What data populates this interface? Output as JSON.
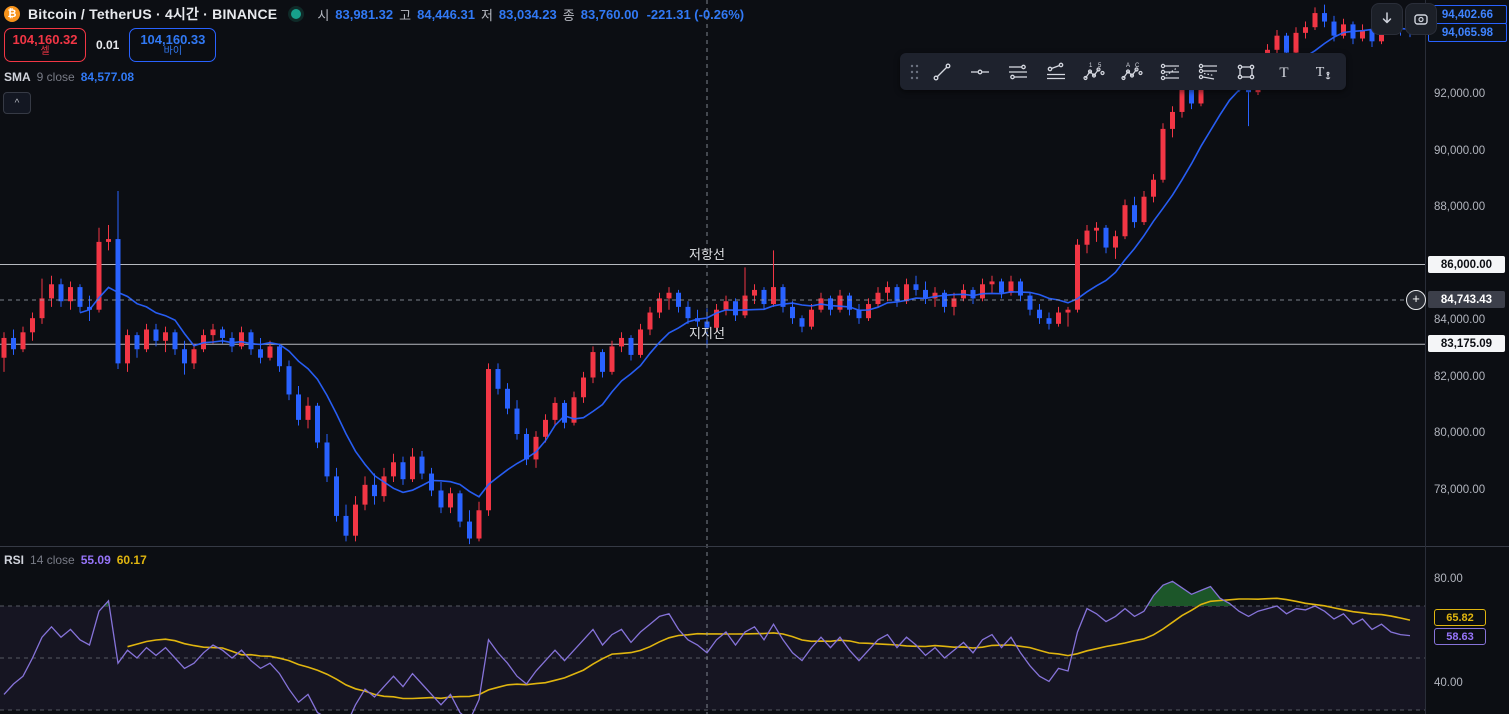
{
  "header": {
    "title": "Bitcoin / TetherUS · 4시간 · BINANCE",
    "logo_glyph": "₿",
    "ohlc": {
      "o_label": "시",
      "o": "83,981.32",
      "h_label": "고",
      "h": "84,446.31",
      "l_label": "저",
      "l": "83,034.23",
      "c_label": "종",
      "c": "83,760.00",
      "change": "-221.31 (-0.26%)"
    }
  },
  "trade_panel": {
    "sell_price": "104,160.32",
    "sell_label": "셀",
    "quantity": "0.01",
    "buy_price": "104,160.33",
    "buy_label": "바이"
  },
  "indicators": {
    "sma": {
      "name": "SMA",
      "params": "9 close",
      "value": "84,577.08"
    },
    "rsi": {
      "name": "RSI",
      "params": "14 close",
      "value_rsi": "55.09",
      "value_ma": "60.17"
    }
  },
  "toolbar": {
    "tools": [
      "drag-handle",
      "trend-line",
      "horizontal-line",
      "parallel-lines",
      "disjoint-channel",
      "elliott-impulse-wave",
      "elliott-correction-wave",
      "pitchfork",
      "schiff-pitchfork",
      "rectangle",
      "text",
      "anchored-text"
    ]
  },
  "top_right_buttons": [
    "download",
    "camera"
  ],
  "collapse_glyph": "^",
  "price_axis": {
    "ticks": [
      {
        "label": "92,000.00",
        "price": 92000
      },
      {
        "label": "90,000.00",
        "price": 90000
      },
      {
        "label": "88,000.00",
        "price": 88000
      },
      {
        "label": "84,000.00",
        "price": 84000
      },
      {
        "label": "82,000.00",
        "price": 82000
      },
      {
        "label": "80,000.00",
        "price": 80000
      },
      {
        "label": "78,000.00",
        "price": 78000
      }
    ],
    "last_price_label": "94,402.66",
    "sma_value_label": "94,065.98",
    "crosshair_label": "84,743.43",
    "resistance_label": "86,000.00",
    "support_label": "83,175.09"
  },
  "rsi_axis": {
    "ticks": [
      {
        "label": "80.00",
        "value": 80
      },
      {
        "label": "40.00",
        "value": 40
      }
    ],
    "ma_label": "65.82",
    "rsi_label": "58.63"
  },
  "annotations": {
    "resistance_text": "저항선",
    "support_text": "지지선"
  },
  "colors": {
    "up": "#f23645",
    "down": "#2962ff",
    "sma_line": "#2962ff",
    "rsi_line": "#8673d9",
    "rsi_ma_line": "#e0b50f",
    "overbought_fill": "#1e5b2a",
    "band_fill": "rgba(134,115,217,0.08)",
    "level_line": "#c9ccd2",
    "crosshair": "#9aa0aa"
  },
  "chart_data": {
    "type": "candlestick",
    "timeframe_label": "4시간",
    "levels": {
      "resistance": 86000,
      "support": 83175.09
    },
    "crosshair": {
      "index": 74,
      "price": 84743.43
    },
    "sma": {
      "period": 9
    },
    "candles": [
      [
        82700,
        83600,
        82200,
        83400
      ],
      [
        83400,
        83700,
        82800,
        83000
      ],
      [
        83000,
        83800,
        82900,
        83600
      ],
      [
        83600,
        84300,
        83300,
        84100
      ],
      [
        84100,
        85500,
        83900,
        84800
      ],
      [
        84800,
        85600,
        84500,
        85300
      ],
      [
        85300,
        85500,
        84500,
        84700
      ],
      [
        84700,
        85400,
        84400,
        85200
      ],
      [
        85200,
        85300,
        84300,
        84500
      ],
      [
        84500,
        84900,
        84000,
        84400
      ],
      [
        84400,
        87300,
        84300,
        86800
      ],
      [
        86800,
        87400,
        86500,
        86900
      ],
      [
        86900,
        88600,
        82300,
        82500
      ],
      [
        82500,
        83700,
        82200,
        83500
      ],
      [
        83500,
        83600,
        82700,
        83000
      ],
      [
        83000,
        83900,
        82900,
        83700
      ],
      [
        83700,
        83900,
        83100,
        83300
      ],
      [
        83300,
        83800,
        82900,
        83600
      ],
      [
        83600,
        83700,
        82800,
        83000
      ],
      [
        83000,
        83300,
        82100,
        82500
      ],
      [
        82500,
        83200,
        82300,
        83000
      ],
      [
        83000,
        83700,
        82900,
        83500
      ],
      [
        83500,
        83900,
        83200,
        83700
      ],
      [
        83700,
        83800,
        83200,
        83400
      ],
      [
        83400,
        83600,
        82900,
        83100
      ],
      [
        83100,
        83800,
        83000,
        83600
      ],
      [
        83600,
        83700,
        82800,
        83000
      ],
      [
        83000,
        83400,
        82500,
        82700
      ],
      [
        82700,
        83300,
        82600,
        83100
      ],
      [
        83100,
        83200,
        82200,
        82400
      ],
      [
        82400,
        82600,
        81200,
        81400
      ],
      [
        81400,
        81700,
        80300,
        80500
      ],
      [
        80500,
        81300,
        80200,
        81000
      ],
      [
        81000,
        81100,
        79500,
        79700
      ],
      [
        79700,
        80000,
        78300,
        78500
      ],
      [
        78500,
        78800,
        76900,
        77100
      ],
      [
        77100,
        77500,
        76200,
        76400
      ],
      [
        76400,
        77800,
        76200,
        77500
      ],
      [
        77500,
        78500,
        77300,
        78200
      ],
      [
        78200,
        78600,
        77500,
        77800
      ],
      [
        77800,
        78800,
        77600,
        78500
      ],
      [
        78500,
        79300,
        78300,
        79000
      ],
      [
        79000,
        79200,
        78200,
        78400
      ],
      [
        78400,
        79500,
        78300,
        79200
      ],
      [
        79200,
        79400,
        78400,
        78600
      ],
      [
        78600,
        78800,
        77800,
        78000
      ],
      [
        78000,
        78300,
        77200,
        77400
      ],
      [
        77400,
        78100,
        77200,
        77900
      ],
      [
        77900,
        78000,
        76700,
        76900
      ],
      [
        76900,
        77300,
        76100,
        76300
      ],
      [
        76300,
        77600,
        76200,
        77300
      ],
      [
        77300,
        82500,
        77100,
        82300
      ],
      [
        82300,
        82500,
        81400,
        81600
      ],
      [
        81600,
        81800,
        80700,
        80900
      ],
      [
        80900,
        81200,
        79800,
        80000
      ],
      [
        80000,
        80200,
        78900,
        79100
      ],
      [
        79100,
        80100,
        78800,
        79900
      ],
      [
        79900,
        80700,
        79700,
        80500
      ],
      [
        80500,
        81300,
        80300,
        81100
      ],
      [
        81100,
        81200,
        80200,
        80400
      ],
      [
        80400,
        81500,
        80300,
        81300
      ],
      [
        81300,
        82200,
        81100,
        82000
      ],
      [
        82000,
        83100,
        81800,
        82900
      ],
      [
        82900,
        83000,
        82000,
        82200
      ],
      [
        82200,
        83300,
        82100,
        83100
      ],
      [
        83100,
        83600,
        82900,
        83400
      ],
      [
        83400,
        83500,
        82600,
        82800
      ],
      [
        82800,
        83900,
        82700,
        83700
      ],
      [
        83700,
        84500,
        83500,
        84300
      ],
      [
        84300,
        85000,
        84100,
        84800
      ],
      [
        84800,
        85200,
        84400,
        85000
      ],
      [
        85000,
        85100,
        84300,
        84500
      ],
      [
        84500,
        84700,
        83900,
        84100
      ],
      [
        84100,
        84400,
        83800,
        83981
      ],
      [
        83981,
        84446,
        83034,
        83760
      ],
      [
        83760,
        84600,
        83600,
        84400
      ],
      [
        84400,
        84900,
        84200,
        84700
      ],
      [
        84700,
        84800,
        84000,
        84200
      ],
      [
        84200,
        85900,
        84100,
        84900
      ],
      [
        84900,
        85300,
        84600,
        85100
      ],
      [
        85100,
        85200,
        84400,
        84600
      ],
      [
        84600,
        86500,
        84500,
        85200
      ],
      [
        85200,
        85300,
        84300,
        84500
      ],
      [
        84500,
        84700,
        83900,
        84100
      ],
      [
        84100,
        84200,
        83600,
        83800
      ],
      [
        83800,
        84600,
        83700,
        84400
      ],
      [
        84400,
        85000,
        84300,
        84800
      ],
      [
        84800,
        84900,
        84200,
        84400
      ],
      [
        84400,
        85100,
        84300,
        84900
      ],
      [
        84900,
        85000,
        84200,
        84400
      ],
      [
        84400,
        84600,
        83900,
        84100
      ],
      [
        84100,
        84800,
        84000,
        84600
      ],
      [
        84600,
        85200,
        84500,
        85000
      ],
      [
        85000,
        85400,
        84700,
        85200
      ],
      [
        85200,
        85300,
        84500,
        84700
      ],
      [
        84700,
        85500,
        84600,
        85300
      ],
      [
        85300,
        85600,
        84900,
        85100
      ],
      [
        85100,
        85400,
        84600,
        84800
      ],
      [
        84800,
        85200,
        84500,
        85000
      ],
      [
        85000,
        85100,
        84300,
        84500
      ],
      [
        84500,
        85000,
        84200,
        84800
      ],
      [
        84800,
        85300,
        84700,
        85100
      ],
      [
        85100,
        85200,
        84600,
        84800
      ],
      [
        84800,
        85500,
        84700,
        85300
      ],
      [
        85300,
        85600,
        85000,
        85400
      ],
      [
        85400,
        85500,
        84800,
        85000
      ],
      [
        85000,
        85600,
        84900,
        85400
      ],
      [
        85400,
        85500,
        84700,
        84900
      ],
      [
        84900,
        85000,
        84200,
        84400
      ],
      [
        84400,
        84600,
        83900,
        84100
      ],
      [
        84100,
        84300,
        83700,
        83900
      ],
      [
        83900,
        84500,
        83800,
        84300
      ],
      [
        84300,
        84500,
        83800,
        84400
      ],
      [
        84400,
        86900,
        84300,
        86700
      ],
      [
        86700,
        87400,
        86400,
        87200
      ],
      [
        87200,
        87500,
        86800,
        87300
      ],
      [
        87300,
        87400,
        86400,
        86600
      ],
      [
        86600,
        87200,
        86200,
        87000
      ],
      [
        87000,
        88300,
        86900,
        88100
      ],
      [
        88100,
        88400,
        87300,
        87500
      ],
      [
        87500,
        88600,
        87400,
        88400
      ],
      [
        88400,
        89200,
        88200,
        89000
      ],
      [
        89000,
        91000,
        88900,
        90800
      ],
      [
        90800,
        91600,
        90500,
        91400
      ],
      [
        91400,
        92400,
        91200,
        92200
      ],
      [
        92200,
        92600,
        91500,
        91700
      ],
      [
        91700,
        92800,
        91600,
        92600
      ],
      [
        92600,
        93300,
        92400,
        93100
      ],
      [
        93100,
        93400,
        92300,
        92500
      ],
      [
        92500,
        93200,
        92400,
        93000
      ],
      [
        93000,
        93300,
        92100,
        92300
      ],
      [
        92300,
        92500,
        90900,
        92100
      ],
      [
        92100,
        93200,
        92000,
        93000
      ],
      [
        93000,
        93800,
        92900,
        93600
      ],
      [
        93600,
        94300,
        93400,
        94100
      ],
      [
        94100,
        94200,
        93300,
        93500
      ],
      [
        93500,
        94400,
        93400,
        94200
      ],
      [
        94200,
        94600,
        94000,
        94400
      ],
      [
        94400,
        95100,
        94300,
        94900
      ],
      [
        94900,
        95200,
        94400,
        94600
      ],
      [
        94600,
        94800,
        93900,
        94100
      ],
      [
        94100,
        94700,
        94000,
        94500
      ],
      [
        94500,
        94600,
        93800,
        94000
      ],
      [
        94000,
        94500,
        93900,
        94300
      ],
      [
        94300,
        94400,
        93700,
        93900
      ],
      [
        93900,
        94700,
        93800,
        94650
      ],
      [
        94650,
        94750,
        94300,
        94600
      ],
      [
        94600,
        94700,
        94100,
        94500
      ],
      [
        94500,
        94560,
        94050,
        94402.66
      ]
    ],
    "rsi": {
      "period": 14,
      "bands": [
        70,
        50,
        30
      ],
      "values": [
        36,
        40,
        43,
        50,
        58,
        62,
        58,
        61,
        57,
        55,
        68,
        72,
        48,
        53,
        50,
        54,
        51,
        54,
        50,
        46,
        48,
        52,
        55,
        53,
        50,
        53,
        49,
        46,
        48,
        44,
        38,
        33,
        36,
        29,
        27,
        25,
        24,
        32,
        38,
        35,
        39,
        43,
        39,
        44,
        40,
        36,
        32,
        36,
        29,
        26,
        34,
        57,
        52,
        48,
        43,
        40,
        45,
        49,
        53,
        49,
        53,
        57,
        61,
        55,
        59,
        61,
        56,
        60,
        63,
        66,
        67,
        61,
        57,
        55,
        52,
        57,
        60,
        55,
        60,
        62,
        57,
        63,
        57,
        52,
        49,
        54,
        58,
        54,
        58,
        53,
        49,
        53,
        57,
        59,
        54,
        58,
        55,
        51,
        54,
        50,
        53,
        56,
        52,
        57,
        59,
        54,
        58,
        52,
        47,
        43,
        41,
        46,
        45,
        60,
        69,
        67,
        64,
        66,
        69,
        66,
        68,
        74,
        78,
        79.5,
        77,
        74.5,
        76,
        77.5,
        73,
        71,
        68,
        66,
        68,
        69,
        70,
        67,
        69,
        68.5,
        70,
        68,
        65,
        67,
        63,
        65,
        61,
        63,
        60,
        59,
        58.63
      ]
    }
  }
}
